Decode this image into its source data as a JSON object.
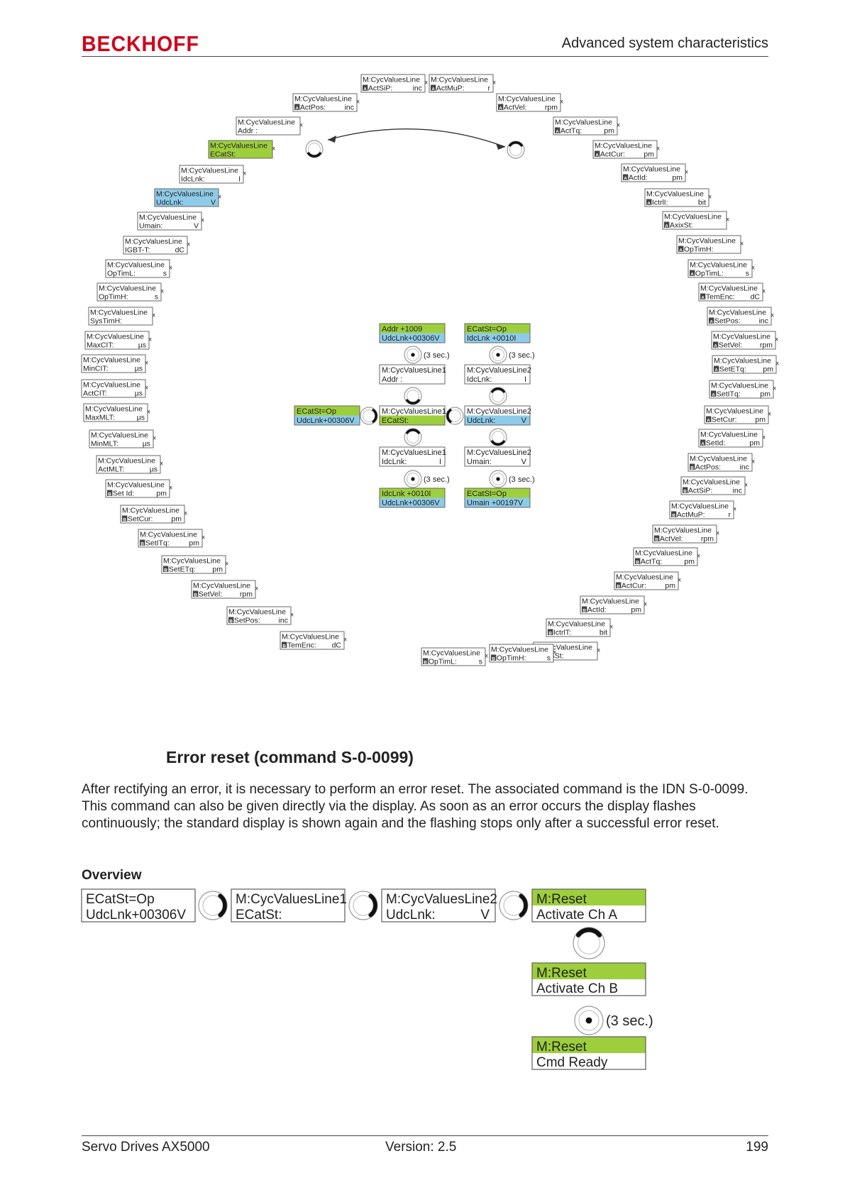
{
  "header": {
    "logo": "BECKHOFF",
    "title": "Advanced system characteristics"
  },
  "colors": {
    "green": "#9dcf3c",
    "blue": "#8ecbe8",
    "logo_red": "#d0021b",
    "frame": "#666666"
  },
  "diagram": {
    "ring": [
      {
        "l1": "M:CycValuesLine",
        "l2": "ActSiP:",
        "u": "inc",
        "icon": "A",
        "hl": "",
        "sub": true
      },
      {
        "l1": "M:CycValuesLine",
        "l2": "ActMuP:",
        "u": "r",
        "icon": "A",
        "hl": "",
        "sub": true
      },
      {
        "l1": "M:CycValuesLine",
        "l2": "ActVel:",
        "u": "rpm",
        "icon": "A",
        "hl": "",
        "sub": true
      },
      {
        "l1": "M:CycValuesLine",
        "l2": "ActTq:",
        "u": "pm",
        "icon": "A",
        "hl": "",
        "sub": true
      },
      {
        "l1": "M:CycValuesLine",
        "l2": "ActCur:",
        "u": "pm",
        "icon": "A",
        "hl": "",
        "sub": true
      },
      {
        "l1": "M:CycValuesLine",
        "l2": "ActId:",
        "u": "pm",
        "icon": "A",
        "hl": "",
        "sub": true
      },
      {
        "l1": "M:CycValuesLine",
        "l2": "IctrlI:",
        "u": "bit",
        "icon": "A",
        "hl": "",
        "sub": true
      },
      {
        "l1": "M:CycValuesLine",
        "l2": "AxixSt:",
        "u": "",
        "icon": "A",
        "hl": "",
        "sub": true
      },
      {
        "l1": "M:CycValuesLine",
        "l2": "OpTimH:",
        "u": "",
        "icon": "A",
        "hl": "",
        "sub": true
      },
      {
        "l1": "M:CycValuesLine",
        "l2": "OpTimL:",
        "u": "s",
        "icon": "A",
        "hl": "",
        "sub": true
      },
      {
        "l1": "M:CycValuesLine",
        "l2": "TemEnc:",
        "u": "dC",
        "icon": "A",
        "hl": "",
        "sub": true
      },
      {
        "l1": "M:CycValuesLine",
        "l2": "SetPos:",
        "u": "inc",
        "icon": "A",
        "hl": "",
        "sub": true
      },
      {
        "l1": "M:CycValuesLine",
        "l2": "SetVel:",
        "u": "rpm",
        "icon": "A",
        "hl": "",
        "sub": true
      },
      {
        "l1": "M:CycValuesLine",
        "l2": "SetETq:",
        "u": "pm",
        "icon": "A",
        "hl": "",
        "sub": true
      },
      {
        "l1": "M:CycValuesLine",
        "l2": "SetITq:",
        "u": "pm",
        "icon": "A",
        "hl": "",
        "sub": true
      },
      {
        "l1": "M:CycValuesLine",
        "l2": "SetCur:",
        "u": "pm",
        "icon": "A",
        "hl": "",
        "sub": true
      },
      {
        "l1": "M:CycValuesLine",
        "l2": "SetId:",
        "u": "pm",
        "icon": "A",
        "hl": "",
        "sub": true
      },
      {
        "l1": "M:CycValuesLine",
        "l2": "ActPos:",
        "u": "inc",
        "icon": "B",
        "hl": "",
        "sub": true
      },
      {
        "l1": "M:CycValuesLine",
        "l2": "ActSiP:",
        "u": "inc",
        "icon": "B",
        "hl": "",
        "sub": true
      },
      {
        "l1": "M:CycValuesLine",
        "l2": "ActMuP:",
        "u": "r",
        "icon": "B",
        "hl": "",
        "sub": true
      },
      {
        "l1": "M:CycValuesLine",
        "l2": "ActVel:",
        "u": "rpm",
        "icon": "B",
        "hl": "",
        "sub": true
      },
      {
        "l1": "M:CycValuesLine",
        "l2": "ActTq:",
        "u": "pm",
        "icon": "B",
        "hl": "",
        "sub": true
      },
      {
        "l1": "M:CycValuesLine",
        "l2": "ActCur:",
        "u": "pm",
        "icon": "B",
        "hl": "",
        "sub": true
      },
      {
        "l1": "M:CycValuesLine",
        "l2": "ActId:",
        "u": "pm",
        "icon": "B",
        "hl": "",
        "sub": true
      },
      {
        "l1": "M:CycValuesLine",
        "l2": "IctrlT:",
        "u": "bit",
        "icon": "B",
        "hl": "",
        "sub": true
      },
      {
        "l1": "M:CycValuesLine",
        "l2": "AxisSt:",
        "u": "",
        "icon": "B",
        "hl": "",
        "sub": true
      },
      {
        "l1": "M:CycValuesLine",
        "l2": "OpTimH:",
        "u": "s",
        "icon": "B",
        "hl": "",
        "sub": true
      },
      {
        "l1": "M:CycValuesLine",
        "l2": "OpTimL:",
        "u": "s",
        "icon": "B",
        "hl": "",
        "sub": true
      },
      {
        "l1": "M:CycValuesLine",
        "l2": "TemEnc:",
        "u": "dC",
        "icon": "B",
        "hl": "",
        "sub": true
      },
      {
        "l1": "M:CycValuesLine",
        "l2": "SetPos:",
        "u": "inc",
        "icon": "B",
        "hl": "",
        "sub": true
      },
      {
        "l1": "M:CycValuesLine",
        "l2": "SetVel:",
        "u": "rpm",
        "icon": "B",
        "hl": "",
        "sub": true
      },
      {
        "l1": "M:CycValuesLine",
        "l2": "SetETq:",
        "u": "pm",
        "icon": "B",
        "hl": "",
        "sub": true
      },
      {
        "l1": "M:CycValuesLine",
        "l2": "SetITq:",
        "u": "pm",
        "icon": "B",
        "hl": "",
        "sub": true
      },
      {
        "l1": "M:CycValuesLine",
        "l2": "SetCur:",
        "u": "pm",
        "icon": "B",
        "hl": "",
        "sub": true
      },
      {
        "l1": "M:CycValuesLine",
        "l2": "Set Id:",
        "u": "pm",
        "icon": "B",
        "hl": "",
        "sub": true
      },
      {
        "l1": "M:CycValuesLine",
        "l2": "ActMLT:",
        "u": "µs",
        "icon": "",
        "hl": "",
        "sub": true
      },
      {
        "l1": "M:CycValuesLine",
        "l2": "MinMLT:",
        "u": "µs",
        "icon": "",
        "hl": "",
        "sub": true
      },
      {
        "l1": "M:CycValuesLine",
        "l2": "MaxMLT:",
        "u": "µs",
        "icon": "",
        "hl": "",
        "sub": true
      },
      {
        "l1": "M:CycValuesLine",
        "l2": "ActCIT:",
        "u": "µs",
        "icon": "",
        "hl": "",
        "sub": true
      },
      {
        "l1": "M:CycValuesLine",
        "l2": "MinCIT:",
        "u": "µs",
        "icon": "",
        "hl": "",
        "sub": true
      },
      {
        "l1": "M:CycValuesLine",
        "l2": "MaxCIT:",
        "u": "µs",
        "icon": "",
        "hl": "",
        "sub": true
      },
      {
        "l1": "M:CycValuesLine",
        "l2": "SysTimH:",
        "u": "",
        "icon": "",
        "hl": "",
        "sub": true
      },
      {
        "l1": "M:CycValuesLine",
        "l2": "OpTimH:",
        "u": "s",
        "icon": "",
        "hl": "",
        "sub": true
      },
      {
        "l1": "M:CycValuesLine",
        "l2": "OpTimL:",
        "u": "s",
        "icon": "",
        "hl": "",
        "sub": true
      },
      {
        "l1": "M:CycValuesLine",
        "l2": "IGBT-T:",
        "u": "dC",
        "icon": "",
        "hl": "",
        "sub": true
      },
      {
        "l1": "M:CycValuesLine",
        "l2": "Umain:",
        "u": "V",
        "icon": "",
        "hl": "",
        "sub": true
      },
      {
        "l1": "M:CycValuesLine",
        "l2": "UdcLnk:",
        "u": "V",
        "icon": "",
        "hl": "blue",
        "sub": true
      },
      {
        "l1": "M:CycValuesLine",
        "l2": "IdcLnk:",
        "u": "I",
        "icon": "",
        "hl": "",
        "sub": true
      },
      {
        "l1": "M:CycValuesLine",
        "l2": "ECatSt:",
        "u": "",
        "icon": "",
        "hl": "green",
        "sub": true
      },
      {
        "l1": "M:CycValuesLine",
        "l2": "Addr    :",
        "u": "",
        "icon": "",
        "hl": "",
        "sub": true
      },
      {
        "l1": "M:CycValuesLine",
        "l2": "ActPos:",
        "u": "inc",
        "icon": "A",
        "hl": "",
        "sub": true
      }
    ],
    "center": [
      {
        "l1": "Addr     +1009",
        "l2": "UdcLnk+00306V",
        "u": "",
        "top": "green",
        "bot": "blue"
      },
      {
        "l1": "ECatSt=Op",
        "l2": "IdcLnk +0010I",
        "u": "",
        "top": "green",
        "bot": "blue"
      },
      {
        "l1": "M:CycValuesLine1",
        "l2": "Addr    :",
        "u": "",
        "top": "",
        "bot": ""
      },
      {
        "l1": "M:CycValuesLine2",
        "l2": "IdcLnk:",
        "u": "I",
        "top": "",
        "bot": ""
      },
      {
        "l1": "ECatSt=Op",
        "l2": "UdcLnk+00306V",
        "u": "",
        "top": "green",
        "bot": "blue"
      },
      {
        "l1": "M:CycValuesLine1",
        "l2": "ECatSt:",
        "u": "",
        "top": "",
        "bot": "green"
      },
      {
        "l1": "M:CycValuesLine2",
        "l2": "UdcLnk:",
        "u": "V",
        "top": "",
        "bot": "blue"
      },
      {
        "l1": "M:CycValuesLine1",
        "l2": "IdcLnk:",
        "u": "I",
        "top": "",
        "bot": ""
      },
      {
        "l1": "M:CycValuesLine2",
        "l2": "Umain:",
        "u": "V",
        "top": "",
        "bot": ""
      },
      {
        "l1": "IdcLnk +0010I",
        "l2": "UdcLnk+00306V",
        "u": "",
        "top": "green",
        "bot": "blue"
      },
      {
        "l1": "ECatSt=Op",
        "l2": "Umain +00197V",
        "u": "",
        "top": "green",
        "bot": "blue"
      }
    ],
    "hold": [
      "(3 sec.)",
      "(3 sec.)",
      "(3 sec.)",
      "(3 sec.)"
    ],
    "x_mark": "x"
  },
  "section": {
    "title": "Error reset (command S-0-0099)",
    "paragraph": "After rectifying an error, it is necessary to perform an error reset. The associated command is the IDN S-0-0099. This command can also be given directly via the display. As soon as an error occurs the display flashes continuously; the standard display is shown again and the flashing stops only after a successful error reset.",
    "overview_title": "Overview"
  },
  "overview": {
    "boxes": [
      {
        "l1": "ECatSt=Op",
        "l2": "UdcLnk+00306V",
        "u": "",
        "top": "",
        "bot": ""
      },
      {
        "l1": "M:CycValuesLine1",
        "l2": "ECatSt:",
        "u": "",
        "top": "",
        "bot": ""
      },
      {
        "l1": "M:CycValuesLine2",
        "l2": "UdcLnk:",
        "u": "V",
        "top": "",
        "bot": ""
      },
      {
        "l1": "M:Reset",
        "l2": "Activate Ch A",
        "u": "",
        "top": "green",
        "bot": ""
      },
      {
        "l1": "M:Reset",
        "l2": "Activate Ch B",
        "u": "",
        "top": "green",
        "bot": ""
      },
      {
        "l1": "M:Reset",
        "l2": "Cmd Ready",
        "u": "",
        "top": "green",
        "bot": ""
      }
    ],
    "hold": "(3 sec.)"
  },
  "footer": {
    "left": "Servo Drives AX5000",
    "center": "Version: 2.5",
    "page": "199"
  }
}
